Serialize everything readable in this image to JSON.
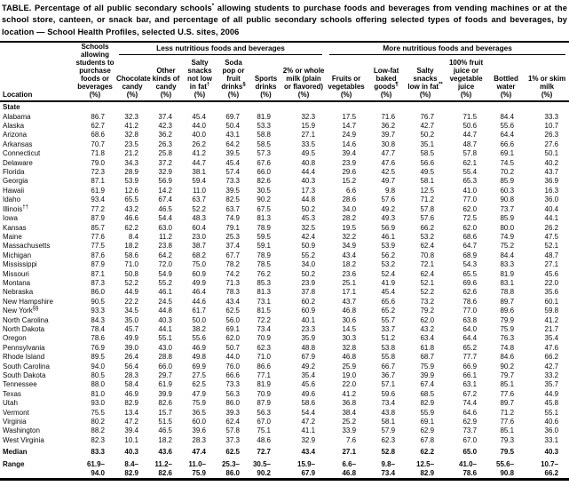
{
  "title": {
    "pre": "TABLE. Percentage of all public secondary schools",
    "sup": "*",
    "post": " allowing students to purchase foods and beverages from vending machines or at the school store, canteen, or snack bar, and percentage of all public secondary schools offering selected types of foods and beverages, by location — School Health Profiles, selected U.S. sites, 2006"
  },
  "header": {
    "location_label": "Location",
    "schools_col": {
      "label": "Schools allowing students to purchase foods or beverages",
      "unit": "(%)"
    },
    "groups": [
      {
        "label": "Less nutritious foods and beverages"
      },
      {
        "label": "More nutritious foods and beverages"
      }
    ],
    "columns": [
      {
        "label": "Chocolate candy",
        "sup": "",
        "unit": "(%)"
      },
      {
        "label": "Other kinds of candy",
        "sup": "",
        "unit": "(%)"
      },
      {
        "label": "Salty snacks not low in fat",
        "sup": "†",
        "unit": "(%)"
      },
      {
        "label": "Soda pop or fruit drinks",
        "sup": "§",
        "unit": "(%)"
      },
      {
        "label": "Sports drinks",
        "sup": "",
        "unit": "(%)"
      },
      {
        "label": "2% or whole milk (plain or flavored)",
        "sup": "",
        "unit": "(%)"
      },
      {
        "label": "Fruits or vegetables",
        "sup": "",
        "unit": "(%)"
      },
      {
        "label": "Low-fat baked goods",
        "sup": "¶",
        "unit": "(%)"
      },
      {
        "label": "Salty snacks low in fat",
        "sup": "**",
        "unit": "(%)"
      },
      {
        "label": "100% fruit juice or vegetable juice",
        "sup": "",
        "unit": "(%)"
      },
      {
        "label": "Bottled water",
        "sup": "",
        "unit": "(%)"
      },
      {
        "label": "1% or skim milk",
        "sup": "",
        "unit": "(%)"
      }
    ]
  },
  "section_label": "State",
  "rows": [
    {
      "location": "Alabama",
      "sup": "",
      "values": [
        "86.7",
        "32.3",
        "37.4",
        "45.4",
        "69.7",
        "81.9",
        "32.3",
        "17.5",
        "71.6",
        "76.7",
        "71.5",
        "84.4",
        "33.3"
      ]
    },
    {
      "location": "Alaska",
      "sup": "",
      "values": [
        "62.7",
        "41.2",
        "42.3",
        "44.0",
        "50.4",
        "53.3",
        "15.9",
        "14.7",
        "36.2",
        "42.7",
        "50.6",
        "55.6",
        "10.7"
      ]
    },
    {
      "location": "Arizona",
      "sup": "",
      "values": [
        "68.6",
        "32.8",
        "36.2",
        "40.0",
        "43.1",
        "58.8",
        "27.1",
        "24.9",
        "39.7",
        "50.2",
        "44.7",
        "64.4",
        "26.3"
      ]
    },
    {
      "location": "Arkansas",
      "sup": "",
      "values": [
        "70.7",
        "23.5",
        "26.3",
        "26.2",
        "64.2",
        "58.5",
        "33.5",
        "14.6",
        "30.8",
        "35.1",
        "48.7",
        "66.6",
        "27.6"
      ]
    },
    {
      "location": "Connecticut",
      "sup": "",
      "values": [
        "71.8",
        "21.2",
        "25.8",
        "41.2",
        "39.5",
        "57.3",
        "49.5",
        "39.4",
        "47.7",
        "58.5",
        "57.8",
        "69.1",
        "50.1"
      ]
    },
    {
      "location": "Delaware",
      "sup": "",
      "values": [
        "79.0",
        "34.3",
        "37.2",
        "44.7",
        "45.4",
        "67.6",
        "40.8",
        "23.9",
        "47.6",
        "56.6",
        "62.1",
        "74.5",
        "40.2"
      ]
    },
    {
      "location": "Florida",
      "sup": "",
      "values": [
        "72.3",
        "28.9",
        "32.9",
        "38.1",
        "57.4",
        "66.0",
        "44.4",
        "29.6",
        "42.5",
        "49.5",
        "55.4",
        "70.2",
        "43.7"
      ]
    },
    {
      "location": "Georgia",
      "sup": "",
      "values": [
        "87.1",
        "53.9",
        "56.9",
        "59.4",
        "73.3",
        "82.6",
        "40.3",
        "15.2",
        "49.7",
        "58.1",
        "65.3",
        "85.9",
        "36.9"
      ]
    },
    {
      "location": "Hawaii",
      "sup": "",
      "values": [
        "61.9",
        "12.6",
        "14.2",
        "11.0",
        "39.5",
        "30.5",
        "17.3",
        "6.6",
        "9.8",
        "12.5",
        "41.0",
        "60.3",
        "16.3"
      ]
    },
    {
      "location": "Idaho",
      "sup": "",
      "values": [
        "93.4",
        "65.5",
        "67.4",
        "63.7",
        "82.5",
        "90.2",
        "44.8",
        "28.6",
        "57.6",
        "71.2",
        "77.0",
        "90.8",
        "36.0"
      ]
    },
    {
      "location": "Illinois",
      "sup": "††",
      "values": [
        "77.2",
        "43.2",
        "46.5",
        "52.2",
        "63.7",
        "67.5",
        "50.2",
        "34.0",
        "49.2",
        "57.8",
        "62.0",
        "73.7",
        "40.4"
      ]
    },
    {
      "location": "Iowa",
      "sup": "",
      "values": [
        "87.9",
        "46.6",
        "54.4",
        "48.3",
        "74.9",
        "81.3",
        "45.3",
        "28.2",
        "49.3",
        "57.6",
        "72.5",
        "85.9",
        "44.1"
      ]
    },
    {
      "location": "Kansas",
      "sup": "",
      "values": [
        "85.7",
        "62.2",
        "63.0",
        "60.4",
        "79.1",
        "78.9",
        "32.5",
        "19.5",
        "56.9",
        "66.2",
        "62.0",
        "80.0",
        "26.2"
      ]
    },
    {
      "location": "Maine",
      "sup": "",
      "values": [
        "77.6",
        "8.4",
        "11.2",
        "23.0",
        "25.3",
        "59.5",
        "42.4",
        "32.2",
        "46.1",
        "53.2",
        "68.6",
        "74.9",
        "47.5"
      ]
    },
    {
      "location": "Massachusetts",
      "sup": "",
      "values": [
        "77.5",
        "18.2",
        "23.8",
        "38.7",
        "37.4",
        "59.1",
        "50.9",
        "34.9",
        "53.9",
        "62.4",
        "64.7",
        "75.2",
        "52.1"
      ]
    },
    {
      "location": "Michigan",
      "sup": "",
      "values": [
        "87.6",
        "58.6",
        "64.2",
        "68.2",
        "67.7",
        "78.9",
        "55.2",
        "43.4",
        "56.2",
        "70.8",
        "68.9",
        "84.4",
        "48.7"
      ]
    },
    {
      "location": "Mississippi",
      "sup": "",
      "values": [
        "87.9",
        "71.0",
        "72.0",
        "75.0",
        "78.2",
        "78.5",
        "34.0",
        "18.2",
        "53.2",
        "72.1",
        "54.3",
        "83.3",
        "27.1"
      ]
    },
    {
      "location": "Missouri",
      "sup": "",
      "values": [
        "87.1",
        "50.8",
        "54.9",
        "60.9",
        "74.2",
        "76.2",
        "50.2",
        "23.6",
        "52.4",
        "62.4",
        "65.5",
        "81.9",
        "45.6"
      ]
    },
    {
      "location": "Montana",
      "sup": "",
      "values": [
        "87.3",
        "52.2",
        "55.2",
        "49.9",
        "71.3",
        "85.3",
        "23.9",
        "25.1",
        "41.9",
        "52.1",
        "69.6",
        "83.1",
        "22.0"
      ]
    },
    {
      "location": "Nebraska",
      "sup": "",
      "values": [
        "86.0",
        "44.9",
        "46.1",
        "46.4",
        "78.3",
        "81.3",
        "37.8",
        "17.1",
        "45.4",
        "52.2",
        "62.6",
        "78.8",
        "35.6"
      ]
    },
    {
      "location": "New Hampshire",
      "sup": "",
      "values": [
        "90.5",
        "22.2",
        "24.5",
        "44.6",
        "43.4",
        "73.1",
        "60.2",
        "43.7",
        "65.6",
        "73.2",
        "78.6",
        "89.7",
        "60.1"
      ]
    },
    {
      "location": "New York",
      "sup": "§§",
      "values": [
        "93.3",
        "34.5",
        "44.8",
        "61.7",
        "62.5",
        "81.5",
        "60.9",
        "46.8",
        "65.2",
        "79.2",
        "77.0",
        "89.6",
        "59.8"
      ]
    },
    {
      "location": "North Carolina",
      "sup": "",
      "values": [
        "84.3",
        "35.0",
        "40.3",
        "50.0",
        "56.0",
        "72.2",
        "40.1",
        "30.6",
        "55.7",
        "62.0",
        "63.8",
        "79.9",
        "41.2"
      ]
    },
    {
      "location": "North Dakota",
      "sup": "",
      "values": [
        "78.4",
        "45.7",
        "44.1",
        "38.2",
        "69.1",
        "73.4",
        "23.3",
        "14.5",
        "33.7",
        "43.2",
        "64.0",
        "75.9",
        "21.7"
      ]
    },
    {
      "location": "Oregon",
      "sup": "",
      "values": [
        "78.6",
        "49.9",
        "55.1",
        "55.6",
        "62.0",
        "70.9",
        "35.9",
        "30.3",
        "51.2",
        "63.4",
        "64.4",
        "76.3",
        "35.4"
      ]
    },
    {
      "location": "Pennsylvania",
      "sup": "",
      "values": [
        "76.9",
        "39.0",
        "43.0",
        "46.9",
        "50.7",
        "62.3",
        "48.8",
        "32.8",
        "53.8",
        "61.8",
        "65.2",
        "74.8",
        "47.6"
      ]
    },
    {
      "location": "Rhode Island",
      "sup": "",
      "values": [
        "89.5",
        "26.4",
        "28.8",
        "49.8",
        "44.0",
        "71.0",
        "67.9",
        "46.8",
        "55.8",
        "68.7",
        "77.7",
        "84.6",
        "66.2"
      ]
    },
    {
      "location": "South Carolina",
      "sup": "",
      "values": [
        "94.0",
        "56.4",
        "66.0",
        "69.9",
        "76.0",
        "86.6",
        "49.2",
        "25.9",
        "66.7",
        "75.9",
        "66.9",
        "90.2",
        "42.7"
      ]
    },
    {
      "location": "South Dakota",
      "sup": "",
      "values": [
        "80.5",
        "28.3",
        "29.7",
        "27.5",
        "66.6",
        "77.1",
        "35.4",
        "19.0",
        "36.7",
        "39.9",
        "66.1",
        "79.7",
        "33.2"
      ]
    },
    {
      "location": "Tennessee",
      "sup": "",
      "values": [
        "88.0",
        "58.4",
        "61.9",
        "62.5",
        "73.3",
        "81.9",
        "45.6",
        "22.0",
        "57.1",
        "67.4",
        "63.1",
        "85.1",
        "35.7"
      ]
    },
    {
      "location": "Texas",
      "sup": "",
      "values": [
        "81.0",
        "46.9",
        "39.9",
        "47.9",
        "56.3",
        "70.9",
        "49.6",
        "41.2",
        "59.6",
        "68.5",
        "67.2",
        "77.6",
        "44.9"
      ]
    },
    {
      "location": "Utah",
      "sup": "",
      "values": [
        "93.0",
        "82.9",
        "82.6",
        "75.9",
        "86.0",
        "87.9",
        "58.6",
        "36.8",
        "73.4",
        "82.9",
        "74.4",
        "89.7",
        "45.8"
      ]
    },
    {
      "location": "Vermont",
      "sup": "",
      "values": [
        "75.5",
        "13.4",
        "15.7",
        "36.5",
        "39.3",
        "56.3",
        "54.4",
        "38.4",
        "43.8",
        "55.9",
        "64.6",
        "71.2",
        "55.1"
      ]
    },
    {
      "location": "Virginia",
      "sup": "",
      "values": [
        "80.2",
        "47.2",
        "51.5",
        "60.0",
        "62.4",
        "67.0",
        "47.2",
        "25.2",
        "58.1",
        "69.1",
        "62.9",
        "77.6",
        "40.6"
      ]
    },
    {
      "location": "Washington",
      "sup": "",
      "values": [
        "88.2",
        "39.4",
        "46.5",
        "39.6",
        "57.8",
        "75.1",
        "41.1",
        "33.9",
        "57.9",
        "62.9",
        "73.7",
        "85.1",
        "36.0"
      ]
    },
    {
      "location": "West Virginia",
      "sup": "",
      "values": [
        "82.3",
        "10.1",
        "18.2",
        "28.3",
        "37.3",
        "48.6",
        "32.9",
        "7.6",
        "62.3",
        "67.8",
        "67.0",
        "79.3",
        "33.1"
      ]
    }
  ],
  "summary": {
    "median": {
      "label": "Median",
      "values": [
        "83.3",
        "40.3",
        "43.6",
        "47.4",
        "62.5",
        "72.7",
        "43.4",
        "27.1",
        "52.8",
        "62.2",
        "65.0",
        "79.5",
        "40.3"
      ]
    },
    "range": {
      "label": "Range",
      "values": [
        [
          "61.9–",
          "94.0"
        ],
        [
          "8.4–",
          "82.9"
        ],
        [
          "11.2–",
          "82.6"
        ],
        [
          "11.0–",
          "75.9"
        ],
        [
          "25.3–",
          "86.0"
        ],
        [
          "30.5–",
          "90.2"
        ],
        [
          "15.9–",
          "67.9"
        ],
        [
          "6.6–",
          "46.8"
        ],
        [
          "9.8–",
          "73.4"
        ],
        [
          "12.5–",
          "82.9"
        ],
        [
          "41.0–",
          "78.6"
        ],
        [
          "55.6–",
          "90.8"
        ],
        [
          "10.7–",
          "66.2"
        ]
      ]
    }
  }
}
